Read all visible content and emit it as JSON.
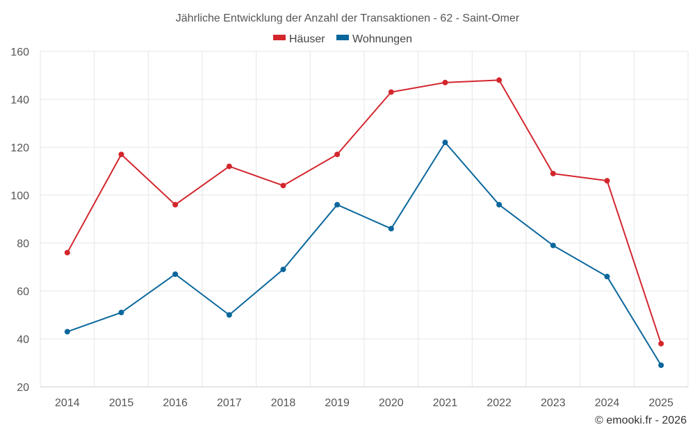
{
  "chart_data": {
    "type": "line",
    "title": "Jährliche Entwicklung der Anzahl der Transaktionen - 62 - Saint-Omer",
    "categories": [
      "2014",
      "2015",
      "2016",
      "2017",
      "2018",
      "2019",
      "2020",
      "2021",
      "2022",
      "2023",
      "2024",
      "2025"
    ],
    "series": [
      {
        "name": "Häuser",
        "color": "#d3262d",
        "values": [
          76,
          117,
          96,
          112,
          104,
          117,
          143,
          147,
          148,
          109,
          106,
          38
        ]
      },
      {
        "name": "Wohnungen",
        "color": "#0a679c",
        "values": [
          43,
          51,
          67,
          50,
          69,
          96,
          86,
          122,
          96,
          79,
          66,
          29
        ]
      }
    ],
    "ylim": [
      20,
      160
    ],
    "yticks": [
      20,
      40,
      60,
      80,
      100,
      120,
      140,
      160
    ],
    "grid": true,
    "legend": "top-center",
    "credit": "© emooki.fr - 2026"
  }
}
